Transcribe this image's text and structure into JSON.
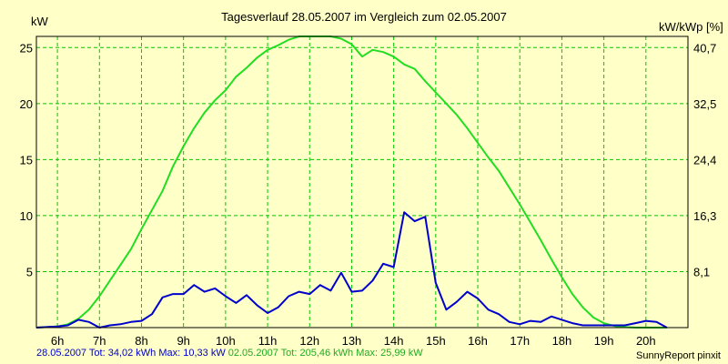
{
  "chart_data": {
    "type": "line",
    "title": "Tagesverlauf 28.05.2007 im Vergleich zum 02.05.2007",
    "ylabel_left": "kW",
    "ylabel_right": "kW/kWp [%]",
    "x_range_h": [
      5.5,
      21.0
    ],
    "ylim": [
      0,
      26
    ],
    "x_ticks": [
      "6h",
      "7h",
      "8h",
      "9h",
      "10h",
      "11h",
      "12h",
      "13h",
      "14h",
      "15h",
      "16h",
      "17h",
      "18h",
      "19h",
      "20h"
    ],
    "y_ticks_left": [
      "5",
      "10",
      "15",
      "20",
      "25"
    ],
    "y_ticks_right": [
      "8,1",
      "16,3",
      "24,4",
      "32,5",
      "40,7"
    ],
    "grid": true,
    "colors": {
      "background": "#ffffc8",
      "plot_bg": "#ffffc8",
      "grid": "#00c800",
      "green_series": "#22dd22",
      "blue_series": "#0000cc"
    },
    "series": [
      {
        "name": "02.05.2007",
        "color": "#22dd22",
        "x": [
          5.5,
          6.0,
          6.25,
          6.5,
          6.75,
          7.0,
          7.25,
          7.5,
          7.75,
          8.0,
          8.25,
          8.5,
          8.75,
          9.0,
          9.25,
          9.5,
          9.75,
          10.0,
          10.25,
          10.5,
          10.75,
          11.0,
          11.25,
          11.5,
          11.75,
          12.0,
          12.25,
          12.5,
          12.75,
          13.0,
          13.25,
          13.5,
          13.75,
          14.0,
          14.25,
          14.5,
          14.75,
          15.0,
          15.25,
          15.5,
          15.75,
          16.0,
          16.25,
          16.5,
          16.75,
          17.0,
          17.25,
          17.5,
          17.75,
          18.0,
          18.25,
          18.5,
          18.75,
          19.0,
          19.25,
          19.5,
          19.75,
          20.0,
          20.25,
          20.5
        ],
        "y": [
          0,
          0.1,
          0.3,
          0.8,
          1.6,
          2.8,
          4.2,
          5.6,
          7.0,
          8.8,
          10.5,
          12.2,
          14.4,
          16.2,
          17.8,
          19.2,
          20.3,
          21.2,
          22.4,
          23.2,
          24.1,
          24.8,
          25.2,
          25.7,
          26.0,
          26.0,
          26.0,
          26.0,
          25.8,
          25.3,
          24.2,
          24.8,
          24.6,
          24.2,
          23.5,
          23.1,
          22.0,
          21.0,
          20.0,
          19.0,
          17.8,
          16.5,
          15.2,
          14.0,
          12.5,
          11.0,
          9.4,
          7.8,
          6.1,
          4.5,
          3.0,
          1.8,
          0.9,
          0.4,
          0.15,
          0.05,
          0,
          0,
          0,
          0
        ]
      },
      {
        "name": "28.05.2007",
        "color": "#0000cc",
        "x": [
          5.5,
          6.0,
          6.25,
          6.5,
          6.75,
          7.0,
          7.25,
          7.5,
          7.75,
          8.0,
          8.25,
          8.5,
          8.75,
          9.0,
          9.25,
          9.5,
          9.75,
          10.0,
          10.25,
          10.5,
          10.75,
          11.0,
          11.25,
          11.5,
          11.75,
          12.0,
          12.25,
          12.5,
          12.75,
          13.0,
          13.25,
          13.5,
          13.75,
          14.0,
          14.25,
          14.5,
          14.75,
          15.0,
          15.25,
          15.5,
          15.75,
          16.0,
          16.25,
          16.5,
          16.75,
          17.0,
          17.25,
          17.5,
          17.75,
          18.0,
          18.25,
          18.5,
          18.75,
          19.0,
          19.25,
          19.5,
          19.75,
          20.0,
          20.25,
          20.5
        ],
        "y": [
          0,
          0.1,
          0.2,
          0.7,
          0.5,
          0.0,
          0.2,
          0.3,
          0.5,
          0.6,
          1.2,
          2.7,
          3.0,
          3.0,
          3.8,
          3.2,
          3.5,
          2.8,
          2.2,
          2.9,
          2.0,
          1.3,
          1.8,
          2.8,
          3.2,
          3.0,
          3.8,
          3.3,
          4.9,
          3.2,
          3.3,
          4.2,
          5.7,
          5.4,
          10.3,
          9.5,
          9.9,
          4.0,
          1.6,
          2.3,
          3.2,
          2.6,
          1.6,
          1.2,
          0.5,
          0.3,
          0.6,
          0.5,
          1.0,
          0.7,
          0.4,
          0.2,
          0.2,
          0.2,
          0.2,
          0.2,
          0.4,
          0.6,
          0.5,
          0.0
        ]
      }
    ],
    "legend": [
      {
        "series": "28.05.2007",
        "text": "28.05.2007 Tot: 34,02 kWh Max: 10,33 kW",
        "color": "#0000cc"
      },
      {
        "series": "02.05.2007",
        "text": "02.05.2007 Tot: 205,46 kWh Max: 25,99 kW",
        "color": "#22dd22"
      }
    ],
    "legend_placement": "bottom-left"
  },
  "credit": "SunnyReport pinxit"
}
